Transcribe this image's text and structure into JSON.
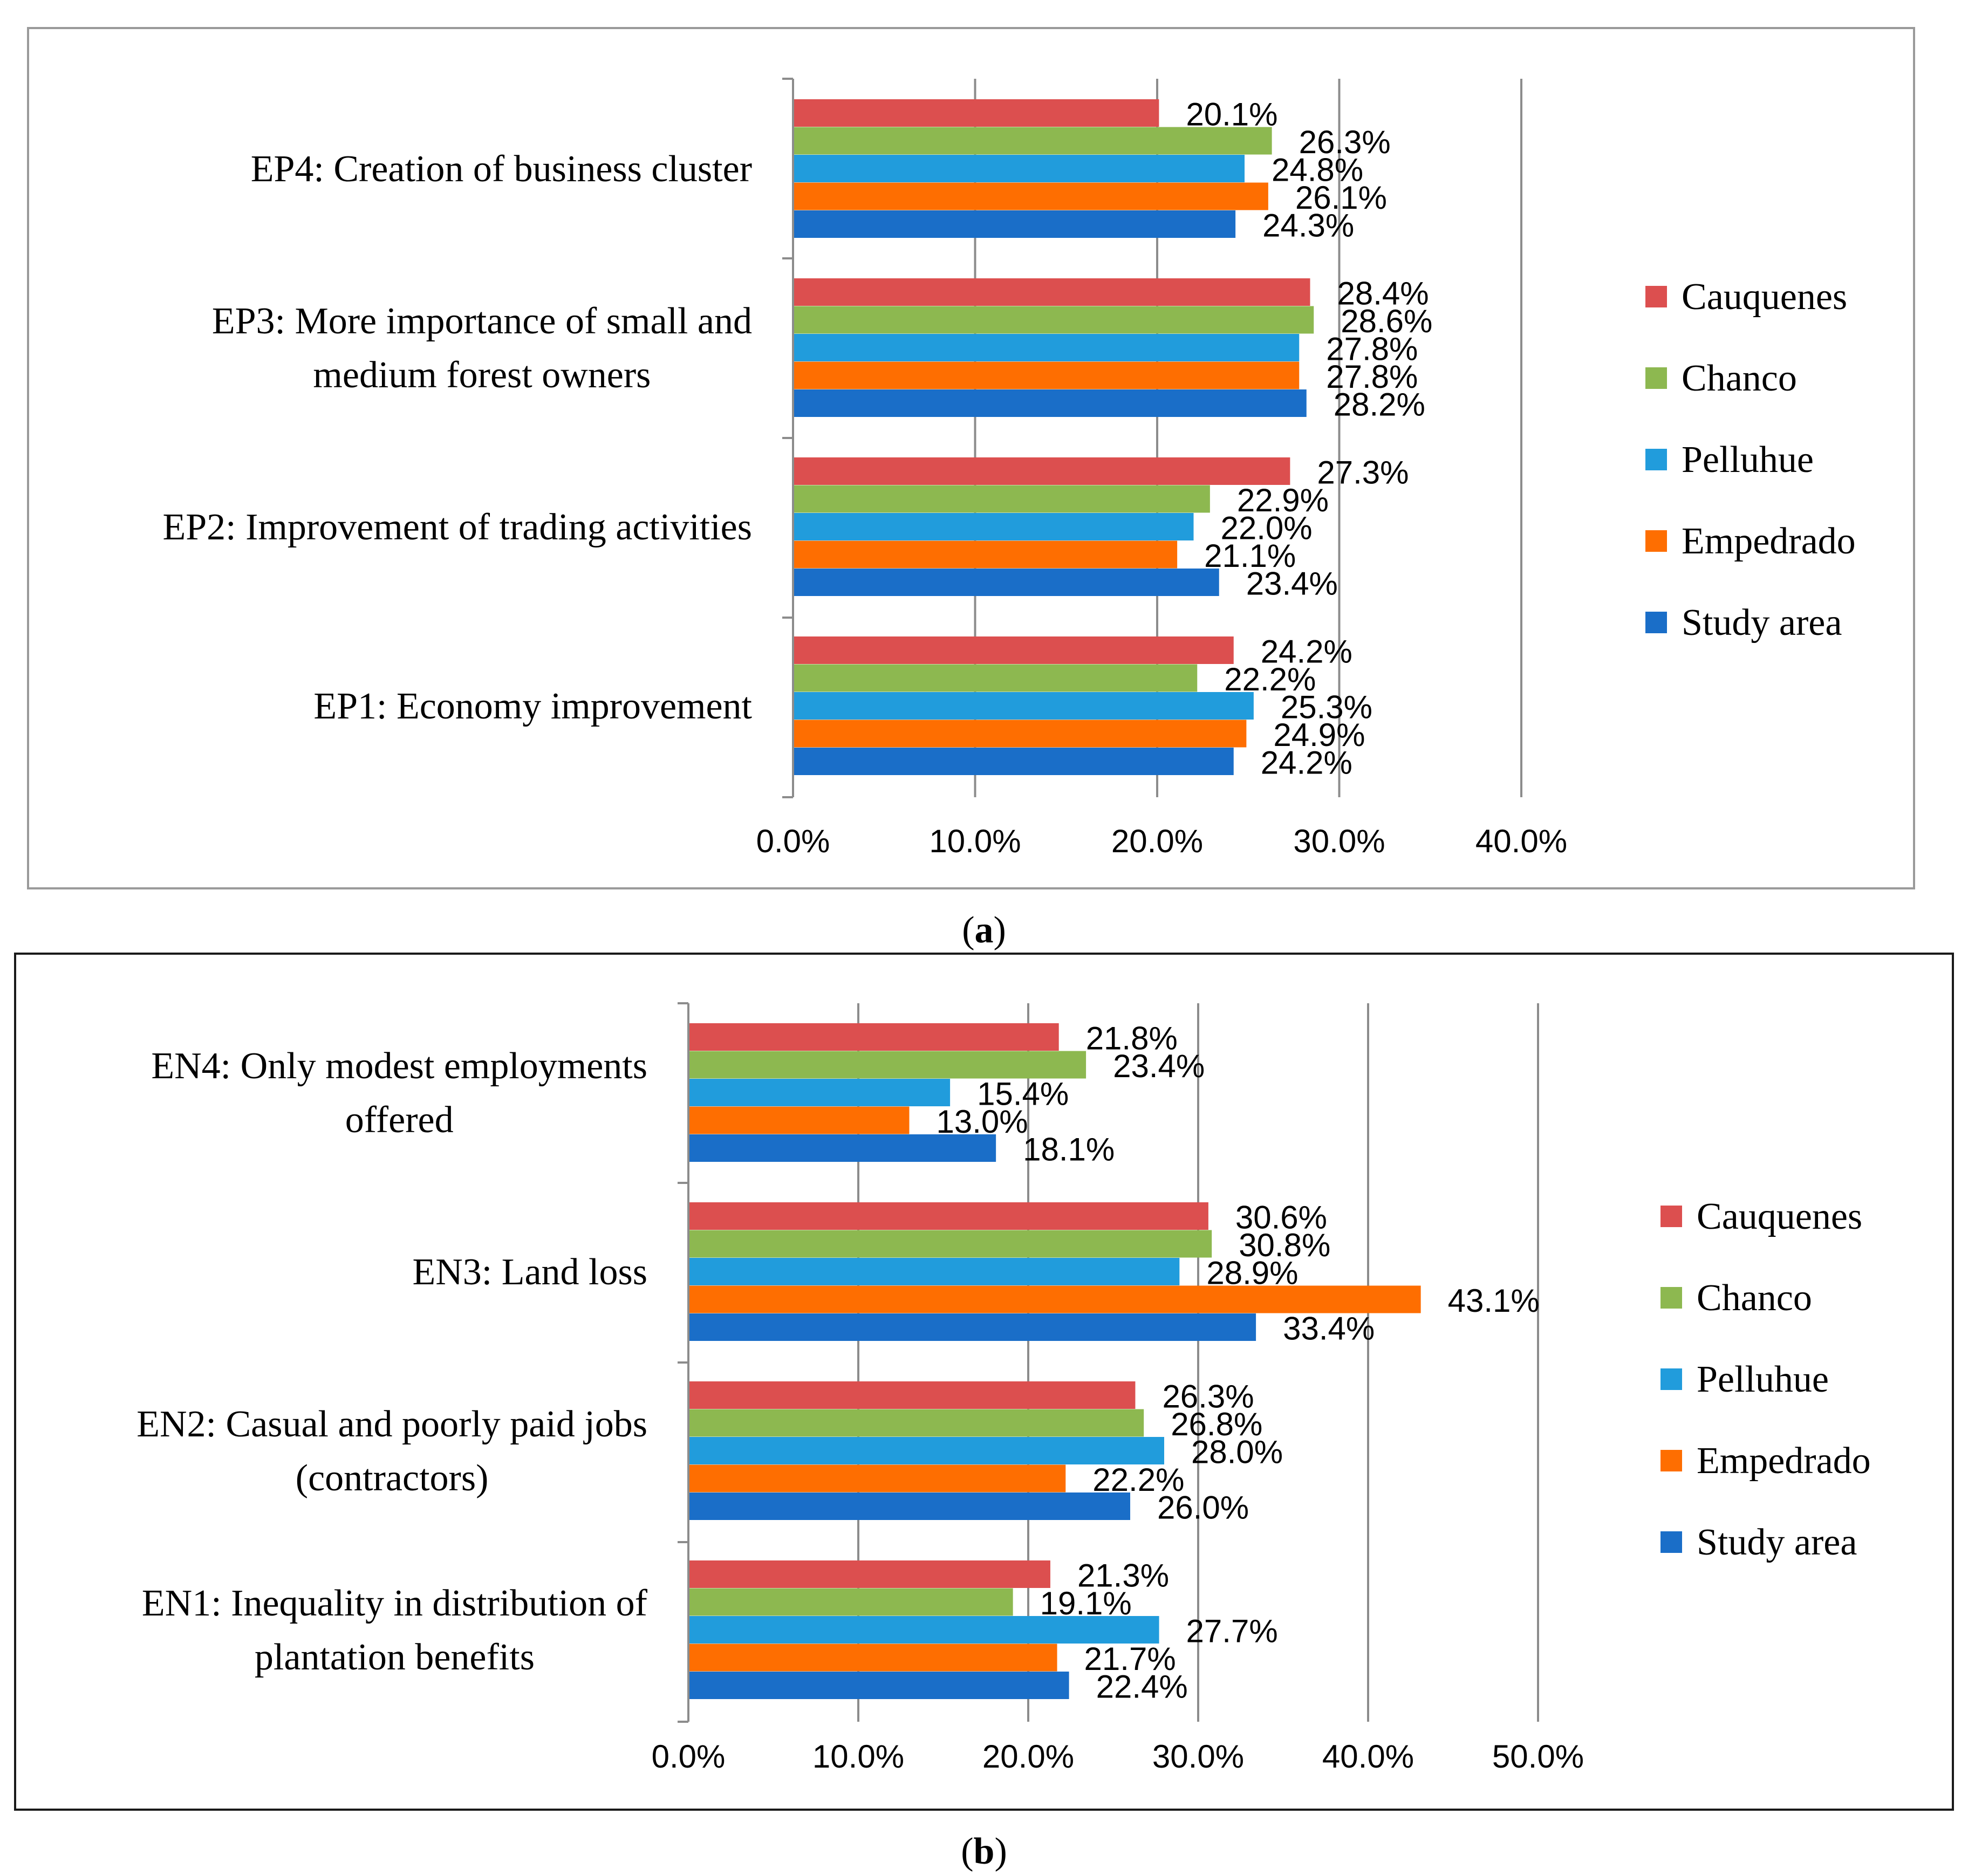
{
  "chart_data": [
    {
      "type": "bar",
      "orientation": "horizontal",
      "panel_caption": "(a)",
      "panel_caption_parts": [
        "(",
        "a",
        ")"
      ],
      "categories": [
        {
          "id": "EP4",
          "lines": [
            "EP4: Creation of business cluster"
          ]
        },
        {
          "id": "EP3",
          "lines": [
            "EP3: More importance of small and",
            "medium forest owners"
          ]
        },
        {
          "id": "EP2",
          "lines": [
            "EP2: Improvement of trading activities"
          ]
        },
        {
          "id": "EP1",
          "lines": [
            "EP1: Economy improvement"
          ]
        }
      ],
      "series": [
        {
          "name": "Cauquenes",
          "color": "#dc4f4f",
          "values": [
            20.1,
            28.4,
            27.3,
            24.2
          ],
          "labels": [
            "20.1%",
            "28.4%",
            "27.3%",
            "24.2%"
          ]
        },
        {
          "name": "Chanco",
          "color": "#8db850",
          "values": [
            26.3,
            28.6,
            22.9,
            22.2
          ],
          "labels": [
            "26.3%",
            "28.6%",
            "22.9%",
            "22.2%"
          ]
        },
        {
          "name": "Pelluhue",
          "color": "#219cdc",
          "values": [
            24.8,
            27.8,
            22.0,
            25.3
          ],
          "labels": [
            "24.8%",
            "27.8%",
            "22.0%",
            "25.3%"
          ]
        },
        {
          "name": "Empedrado",
          "color": "#fe6e01",
          "values": [
            26.1,
            27.8,
            21.1,
            24.9
          ],
          "labels": [
            "26.1%",
            "27.8%",
            "21.1%",
            "24.9%"
          ]
        },
        {
          "name": "Study area",
          "color": "#1a6ec8",
          "values": [
            24.3,
            28.2,
            23.4,
            24.2
          ],
          "labels": [
            "24.3%",
            "28.2%",
            "23.4%",
            "24.2%"
          ]
        }
      ],
      "xlim": [
        0,
        40
      ],
      "xticks": [
        0,
        10,
        20,
        30,
        40
      ],
      "xtick_labels": [
        "0.0%",
        "10.0%",
        "20.0%",
        "30.0%",
        "40.0%"
      ],
      "grid": true,
      "legend": [
        "Cauquenes",
        "Chanco",
        "Pelluhue",
        "Empedrado",
        "Study area"
      ],
      "legend_position": "right"
    },
    {
      "type": "bar",
      "orientation": "horizontal",
      "panel_caption": "(b)",
      "panel_caption_parts": [
        "(",
        "b",
        ")"
      ],
      "categories": [
        {
          "id": "EN4",
          "lines": [
            "EN4: Only modest employments",
            "offered"
          ]
        },
        {
          "id": "EN3",
          "lines": [
            "EN3: Land loss"
          ]
        },
        {
          "id": "EN2",
          "lines": [
            "EN2: Casual and poorly paid jobs",
            "(contractors)"
          ]
        },
        {
          "id": "EN1",
          "lines": [
            "EN1: Inequality in distribution of",
            "plantation benefits"
          ]
        }
      ],
      "series": [
        {
          "name": "Cauquenes",
          "color": "#dc4f4f",
          "values": [
            21.8,
            30.6,
            26.3,
            21.3
          ],
          "labels": [
            "21.8%",
            "30.6%",
            "26.3%",
            "21.3%"
          ]
        },
        {
          "name": "Chanco",
          "color": "#8db850",
          "values": [
            23.4,
            30.8,
            26.8,
            19.1
          ],
          "labels": [
            "23.4%",
            "30.8%",
            "26.8%",
            "19.1%"
          ]
        },
        {
          "name": "Pelluhue",
          "color": "#219cdc",
          "values": [
            15.4,
            28.9,
            28.0,
            27.7
          ],
          "labels": [
            "15.4%",
            "28.9%",
            "28.0%",
            "27.7%"
          ]
        },
        {
          "name": "Empedrado",
          "color": "#fe6e01",
          "values": [
            13.0,
            43.1,
            22.2,
            21.7
          ],
          "labels": [
            "13.0%",
            "43.1%",
            "22.2%",
            "21.7%"
          ]
        },
        {
          "name": "Study area",
          "color": "#1a6ec8",
          "values": [
            18.1,
            33.4,
            26.0,
            22.4
          ],
          "labels": [
            "18.1%",
            "33.4%",
            "26.0%",
            "22.4%"
          ]
        }
      ],
      "xlim": [
        0,
        50
      ],
      "xticks": [
        0,
        10,
        20,
        30,
        40,
        50
      ],
      "xtick_labels": [
        "0.0%",
        "10.0%",
        "20.0%",
        "30.0%",
        "40.0%",
        "50.0%"
      ],
      "grid": true,
      "legend": [
        "Cauquenes",
        "Chanco",
        "Pelluhue",
        "Empedrado",
        "Study area"
      ],
      "legend_position": "right"
    }
  ]
}
